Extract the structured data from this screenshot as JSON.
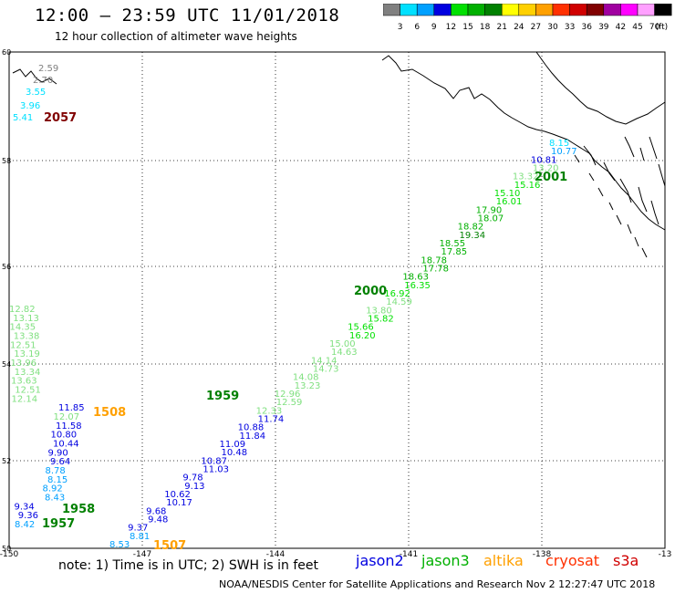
{
  "header": {
    "title": "12:00 – 23:59 UTC 11/01/2018",
    "subtitle": "12 hour collection of altimeter wave heights"
  },
  "legend": {
    "unit": "(ft)",
    "bins": [
      {
        "label": "3",
        "color": "#808080"
      },
      {
        "label": "6",
        "color": "#00e0ff"
      },
      {
        "label": "9",
        "color": "#00a0ff"
      },
      {
        "label": "12",
        "color": "#0000e0"
      },
      {
        "label": "15",
        "color": "#00e000"
      },
      {
        "label": "18",
        "color": "#00b000"
      },
      {
        "label": "21",
        "color": "#008000"
      },
      {
        "label": "24",
        "color": "#ffff00"
      },
      {
        "label": "27",
        "color": "#ffd000"
      },
      {
        "label": "30",
        "color": "#ffa000"
      },
      {
        "label": "33",
        "color": "#ff3000"
      },
      {
        "label": "36",
        "color": "#d00000"
      },
      {
        "label": "39",
        "color": "#800000"
      },
      {
        "label": "42",
        "color": "#a000a0"
      },
      {
        "label": "45",
        "color": "#ff00ff"
      },
      {
        "label": "70",
        "color": "#ffa0ff"
      },
      {
        "label": "",
        "color": "#000000"
      }
    ]
  },
  "axes": {
    "lon_labels": [
      "-150",
      "-147",
      "-144",
      "-141",
      "-138",
      "-13"
    ],
    "lat_labels": [
      "60",
      "58",
      "56",
      "54",
      "52",
      "50"
    ]
  },
  "time_labels": [
    {
      "text": "2057",
      "color": "#800000"
    },
    {
      "text": "2001",
      "color": "#008000"
    },
    {
      "text": "2000",
      "color": "#008000"
    },
    {
      "text": "1959",
      "color": "#008000"
    },
    {
      "text": "1508",
      "color": "#ffa000"
    },
    {
      "text": "1958",
      "color": "#008000"
    },
    {
      "text": "1957",
      "color": "#008000"
    },
    {
      "text": "1507",
      "color": "#ffa000"
    }
  ],
  "footer": {
    "note": "note: 1) Time is in UTC; 2) SWH is in feet",
    "credit": "NOAA/NESDIS Center for Satellite Applications and Research    Nov  2 12:27:47 UTC 2018"
  },
  "satellites": [
    {
      "name": "jason2",
      "color": "#0000e0"
    },
    {
      "name": "jason3",
      "color": "#00b000"
    },
    {
      "name": "altika",
      "color": "#ffa000"
    },
    {
      "name": "cryosat",
      "color": "#ff3000"
    },
    {
      "name": "s3a",
      "color": "#d00000"
    }
  ],
  "tracks": {
    "cryosat_top": [
      {
        "v": "2.59",
        "color": "#808080"
      },
      {
        "v": "2.70",
        "color": "#808080"
      },
      {
        "v": "3.55",
        "color": "#00e0ff"
      },
      {
        "v": "3.96",
        "color": "#00e0ff"
      },
      {
        "v": "5.41",
        "color": "#00e0ff"
      }
    ],
    "jason3_main": [
      {
        "v": "8.15",
        "color": "#00e0ff"
      },
      {
        "v": "10.77",
        "color": "#00a0ff"
      },
      {
        "v": "10.81",
        "color": "#0000e0"
      },
      {
        "v": "13.20",
        "color": "#80e080"
      },
      {
        "v": "13.32",
        "color": "#80e080"
      },
      {
        "v": "15.16",
        "color": "#00e000"
      },
      {
        "v": "15.10",
        "color": "#00e000"
      },
      {
        "v": "16.01",
        "color": "#00e000"
      },
      {
        "v": "17.90",
        "color": "#00b000"
      },
      {
        "v": "18.07",
        "color": "#00b000"
      },
      {
        "v": "18.82",
        "color": "#00b000"
      },
      {
        "v": "19.34",
        "color": "#008000"
      },
      {
        "v": "18.55",
        "color": "#00b000"
      },
      {
        "v": "17.85",
        "color": "#00b000"
      },
      {
        "v": "18.78",
        "color": "#00b000"
      },
      {
        "v": "17.78",
        "color": "#00b000"
      },
      {
        "v": "18.63",
        "color": "#00b000"
      },
      {
        "v": "16.35",
        "color": "#00e000"
      },
      {
        "v": "16.92",
        "color": "#00e000"
      },
      {
        "v": "14.59",
        "color": "#80e080"
      },
      {
        "v": "13.80",
        "color": "#80e080"
      },
      {
        "v": "15.82",
        "color": "#00e000"
      },
      {
        "v": "15.66",
        "color": "#00e000"
      },
      {
        "v": "16.20",
        "color": "#00e000"
      },
      {
        "v": "15.00",
        "color": "#80e080"
      },
      {
        "v": "14.63",
        "color": "#80e080"
      },
      {
        "v": "14.14",
        "color": "#80e080"
      },
      {
        "v": "14.73",
        "color": "#80e080"
      },
      {
        "v": "14.08",
        "color": "#80e080"
      },
      {
        "v": "13.23",
        "color": "#80e080"
      },
      {
        "v": "12.96",
        "color": "#80e080"
      },
      {
        "v": "12.59",
        "color": "#80e080"
      },
      {
        "v": "12.33",
        "color": "#80e080"
      },
      {
        "v": "11.74",
        "color": "#0000e0"
      },
      {
        "v": "10.88",
        "color": "#0000e0"
      },
      {
        "v": "11.84",
        "color": "#0000e0"
      },
      {
        "v": "11.09",
        "color": "#0000e0"
      },
      {
        "v": "10.48",
        "color": "#0000e0"
      },
      {
        "v": "10.87",
        "color": "#0000e0"
      },
      {
        "v": "11.03",
        "color": "#0000e0"
      },
      {
        "v": "9.78",
        "color": "#0000e0"
      },
      {
        "v": "9.13",
        "color": "#0000e0"
      },
      {
        "v": "10.62",
        "color": "#0000e0"
      },
      {
        "v": "10.17",
        "color": "#0000e0"
      },
      {
        "v": "9.68",
        "color": "#0000e0"
      },
      {
        "v": "9.48",
        "color": "#0000e0"
      },
      {
        "v": "9.37",
        "color": "#0000e0"
      },
      {
        "v": "8.81",
        "color": "#00a0ff"
      },
      {
        "v": "8.53",
        "color": "#00a0ff"
      }
    ],
    "altika_left": [
      {
        "v": "12.82",
        "color": "#80e080"
      },
      {
        "v": "13.13",
        "color": "#80e080"
      },
      {
        "v": "14.35",
        "color": "#80e080"
      },
      {
        "v": "13.38",
        "color": "#80e080"
      },
      {
        "v": "12.51",
        "color": "#80e080"
      },
      {
        "v": "13.19",
        "color": "#80e080"
      },
      {
        "v": "13.96",
        "color": "#80e080"
      },
      {
        "v": "13.34",
        "color": "#80e080"
      },
      {
        "v": "13.63",
        "color": "#80e080"
      },
      {
        "v": "12.51",
        "color": "#80e080"
      },
      {
        "v": "12.14",
        "color": "#80e080"
      },
      {
        "v": "11.85",
        "color": "#0000e0"
      },
      {
        "v": "12.07",
        "color": "#80e080"
      },
      {
        "v": "11.58",
        "color": "#0000e0"
      },
      {
        "v": "10.80",
        "color": "#0000e0"
      },
      {
        "v": "10.44",
        "color": "#0000e0"
      },
      {
        "v": "9.90",
        "color": "#0000e0"
      },
      {
        "v": "9.64",
        "color": "#0000e0"
      },
      {
        "v": "8.78",
        "color": "#00a0ff"
      },
      {
        "v": "8.15",
        "color": "#00a0ff"
      },
      {
        "v": "8.92",
        "color": "#00a0ff"
      },
      {
        "v": "8.43",
        "color": "#00a0ff"
      },
      {
        "v": "9.34",
        "color": "#0000e0"
      },
      {
        "v": "9.36",
        "color": "#0000e0"
      },
      {
        "v": "8.42",
        "color": "#00a0ff"
      }
    ]
  }
}
